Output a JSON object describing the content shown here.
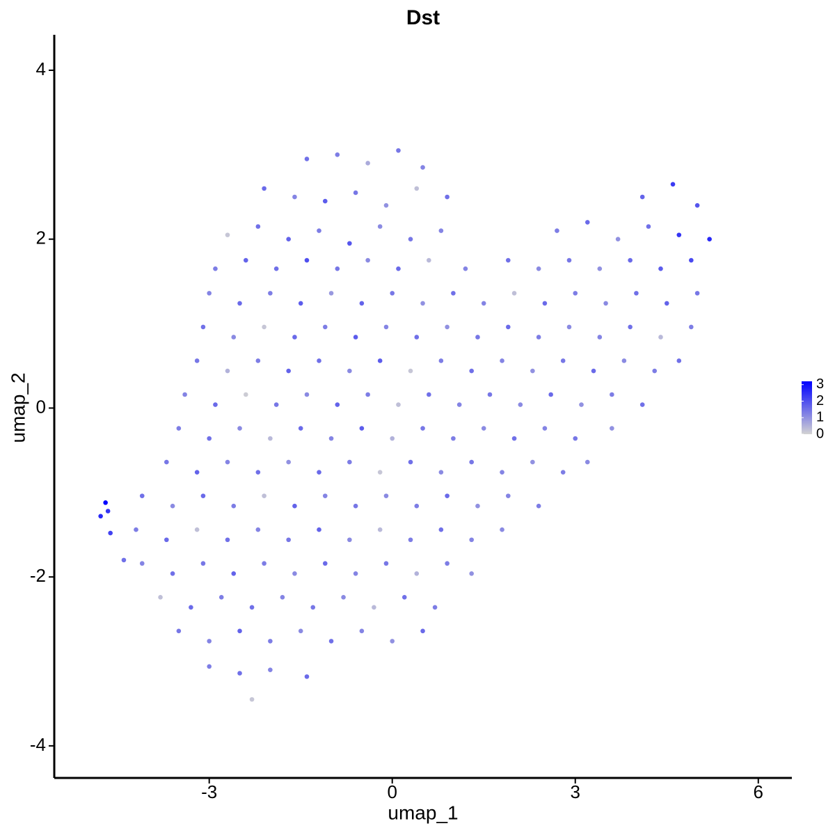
{
  "chart_data": {
    "type": "scatter",
    "title": "Dst",
    "x_label": "umap_1",
    "y_label": "umap_2",
    "xlim": [
      -5.54,
      6.55
    ],
    "ylim": [
      -4.38,
      4.42
    ],
    "xticks": [
      -3,
      0,
      3,
      6
    ],
    "yticks": [
      -4,
      -2,
      0,
      2,
      4
    ],
    "color_low": "#d3d3d3",
    "color_high": "#0000ff",
    "color_lim": [
      0,
      3.2
    ],
    "colorbar_ticks": [
      0,
      1,
      2,
      3
    ],
    "x": [
      -1.4,
      -0.9,
      -0.4,
      0.1,
      0.5,
      -2.1,
      -1.6,
      -1.1,
      -0.6,
      -0.1,
      0.4,
      0.9,
      4.1,
      4.6,
      5.0,
      -2.7,
      -2.2,
      -1.7,
      -1.2,
      -0.7,
      -0.2,
      0.3,
      0.8,
      2.7,
      3.2,
      3.7,
      4.2,
      4.7,
      5.2,
      -2.9,
      -2.4,
      -1.9,
      -1.4,
      -0.9,
      -0.4,
      0.1,
      0.6,
      1.2,
      1.9,
      2.4,
      2.9,
      3.4,
      3.9,
      4.4,
      4.9,
      -3.0,
      -2.5,
      -2.0,
      -1.5,
      -1.0,
      -0.5,
      0,
      0.5,
      1.0,
      1.5,
      2.0,
      2.5,
      3.0,
      3.5,
      4.0,
      4.5,
      5.0,
      -3.1,
      -2.6,
      -2.1,
      -1.6,
      -1.1,
      -0.6,
      -0.1,
      0.4,
      0.9,
      1.4,
      1.9,
      2.4,
      2.9,
      3.4,
      3.9,
      4.4,
      4.9,
      -3.2,
      -2.7,
      -2.2,
      -1.7,
      -1.2,
      -0.7,
      -0.2,
      0.3,
      0.8,
      1.3,
      1.8,
      2.3,
      2.8,
      3.3,
      3.8,
      4.3,
      4.7,
      -3.4,
      -2.9,
      -2.4,
      -1.9,
      -1.4,
      -0.9,
      -0.4,
      0.1,
      0.6,
      1.1,
      1.6,
      2.1,
      2.6,
      3.1,
      3.6,
      4.1,
      -3.5,
      -3.0,
      -2.5,
      -2.0,
      -1.5,
      -1.0,
      -0.5,
      0,
      0.5,
      1.0,
      1.5,
      2.0,
      2.5,
      3.0,
      3.6,
      -3.7,
      -3.2,
      -2.7,
      -2.2,
      -1.7,
      -1.2,
      -0.7,
      -0.2,
      0.3,
      0.8,
      1.3,
      1.8,
      2.3,
      2.8,
      3.2,
      -4.1,
      -3.6,
      -3.1,
      -2.6,
      -2.1,
      -1.6,
      -1.1,
      -0.6,
      -0.1,
      0.4,
      0.9,
      1.4,
      1.9,
      2.4,
      -4.2,
      -3.7,
      -3.2,
      -2.7,
      -2.2,
      -1.7,
      -1.2,
      -0.7,
      -0.2,
      0.3,
      0.8,
      1.3,
      1.8,
      -4.1,
      -3.6,
      -3.1,
      -2.6,
      -2.1,
      -1.6,
      -1.1,
      -0.6,
      -0.1,
      0.4,
      0.9,
      1.3,
      -3.8,
      -3.3,
      -2.8,
      -2.3,
      -1.8,
      -1.3,
      -0.8,
      -0.3,
      0.2,
      0.7,
      -3.5,
      -3.0,
      -2.5,
      -2.0,
      -1.5,
      -1.0,
      -0.5,
      0,
      0.5,
      -3.0,
      -2.5,
      -2.0,
      -1.4,
      -2.3,
      -4.7,
      -4.78,
      -4.66,
      -4.62,
      -4.4
    ],
    "y": [
      2.95,
      3.0,
      2.9,
      3.05,
      2.85,
      2.6,
      2.5,
      2.45,
      2.55,
      2.4,
      2.6,
      2.5,
      2.5,
      2.65,
      2.4,
      2.05,
      2.15,
      2.0,
      2.1,
      1.95,
      2.15,
      2.0,
      2.1,
      2.1,
      2.2,
      2.0,
      2.15,
      2.05,
      2.0,
      1.65,
      1.75,
      1.65,
      1.75,
      1.65,
      1.75,
      1.65,
      1.75,
      1.65,
      1.75,
      1.65,
      1.75,
      1.65,
      1.75,
      1.65,
      1.75,
      1.36,
      1.24,
      1.36,
      1.24,
      1.36,
      1.24,
      1.36,
      1.24,
      1.36,
      1.24,
      1.36,
      1.24,
      1.36,
      1.24,
      1.36,
      1.24,
      1.36,
      0.96,
      0.84,
      0.96,
      0.84,
      0.96,
      0.84,
      0.96,
      0.84,
      0.96,
      0.84,
      0.96,
      0.84,
      0.96,
      0.84,
      0.96,
      0.84,
      0.96,
      0.56,
      0.44,
      0.56,
      0.44,
      0.56,
      0.44,
      0.56,
      0.44,
      0.56,
      0.44,
      0.56,
      0.44,
      0.56,
      0.44,
      0.56,
      0.44,
      0.56,
      0.16,
      0.04,
      0.16,
      0.04,
      0.16,
      0.04,
      0.16,
      0.04,
      0.16,
      0.04,
      0.16,
      0.04,
      0.16,
      0.04,
      0.16,
      0.04,
      -0.24,
      -0.36,
      -0.24,
      -0.36,
      -0.24,
      -0.36,
      -0.24,
      -0.36,
      -0.24,
      -0.36,
      -0.24,
      -0.36,
      -0.24,
      -0.36,
      -0.24,
      -0.64,
      -0.76,
      -0.64,
      -0.76,
      -0.64,
      -0.76,
      -0.64,
      -0.76,
      -0.64,
      -0.76,
      -0.64,
      -0.76,
      -0.64,
      -0.76,
      -0.64,
      -1.04,
      -1.16,
      -1.04,
      -1.16,
      -1.04,
      -1.16,
      -1.04,
      -1.16,
      -1.04,
      -1.16,
      -1.04,
      -1.16,
      -1.04,
      -1.16,
      -1.44,
      -1.56,
      -1.44,
      -1.56,
      -1.44,
      -1.56,
      -1.44,
      -1.56,
      -1.44,
      -1.56,
      -1.44,
      -1.56,
      -1.44,
      -1.84,
      -1.96,
      -1.84,
      -1.96,
      -1.84,
      -1.96,
      -1.84,
      -1.96,
      -1.84,
      -1.96,
      -1.84,
      -1.96,
      -2.24,
      -2.36,
      -2.24,
      -2.36,
      -2.24,
      -2.36,
      -2.24,
      -2.36,
      -2.24,
      -2.36,
      -2.64,
      -2.76,
      -2.64,
      -2.76,
      -2.64,
      -2.76,
      -2.64,
      -2.76,
      -2.64,
      -3.06,
      -3.14,
      -3.1,
      -3.18,
      -3.45,
      -1.12,
      -1.28,
      -1.22,
      -1.48,
      -1.8
    ],
    "values": [
      1.5,
      1.3,
      0.6,
      1.4,
      1.2,
      1.6,
      1.2,
      1.8,
      1.4,
      1.0,
      0.3,
      1.5,
      1.7,
      2.3,
      1.9,
      0.2,
      1.5,
      1.7,
      1.3,
      1.9,
      1.1,
      1.4,
      1.2,
      1.3,
      1.6,
      1.0,
      1.5,
      2.4,
      2.6,
      1.3,
      1.7,
      1.5,
      2.0,
      1.4,
      1.1,
      1.6,
      0.4,
      1.2,
      1.5,
      1.1,
      1.4,
      1.0,
      1.6,
      1.8,
      2.1,
      1.2,
      1.6,
      1.3,
      1.8,
      0.9,
      1.7,
      1.4,
      1.0,
      1.5,
      1.2,
      0.3,
      1.6,
      1.3,
      1.1,
      1.5,
      1.7,
      1.4,
      1.5,
      1.1,
      0.2,
      1.6,
      1.3,
      1.8,
      1.2,
      1.5,
      1.0,
      1.4,
      1.6,
      1.3,
      1.1,
      1.2,
      1.5,
      0.4,
      1.3,
      1.4,
      0.5,
      1.3,
      1.7,
      1.5,
      1.1,
      1.8,
      0.2,
      1.3,
      1.5,
      1.2,
      1.0,
      1.4,
      1.6,
      1.1,
      1.3,
      1.5,
      1.2,
      1.6,
      0.1,
      1.4,
      1.1,
      1.7,
      1.3,
      0.3,
      1.5,
      1.2,
      1.4,
      1.1,
      1.6,
      1.0,
      1.3,
      1.5,
      1.3,
      1.5,
      1.1,
      0.4,
      1.6,
      1.2,
      1.8,
      0.5,
      1.4,
      1.3,
      1.1,
      1.5,
      1.2,
      1.4,
      1.0,
      1.4,
      1.7,
      1.2,
      1.5,
      1.0,
      1.6,
      1.3,
      0.2,
      1.5,
      1.1,
      1.4,
      1.2,
      1.0,
      1.3,
      1.1,
      1.5,
      1.1,
      1.6,
      1.3,
      0.3,
      1.7,
      1.2,
      1.4,
      1.1,
      1.3,
      1.6,
      1.0,
      1.2,
      1.3,
      1.3,
      1.6,
      0.3,
      1.5,
      1.2,
      1.4,
      1.7,
      1.1,
      0.4,
      1.3,
      1.5,
      1.2,
      1.1,
      1.2,
      1.5,
      1.4,
      1.7,
      1.3,
      1.1,
      1.6,
      1.2,
      1.4,
      0.5,
      1.3,
      1.0,
      0.3,
      1.6,
      1.3,
      1.5,
      1.2,
      1.4,
      1.1,
      0.4,
      1.5,
      1.3,
      1.4,
      1.2,
      1.7,
      1.3,
      1.1,
      1.5,
      1.2,
      1.0,
      1.6,
      1.3,
      1.5,
      1.2,
      1.6,
      0.2,
      3.2,
      2.6,
      2.4,
      2.2,
      1.5
    ]
  }
}
